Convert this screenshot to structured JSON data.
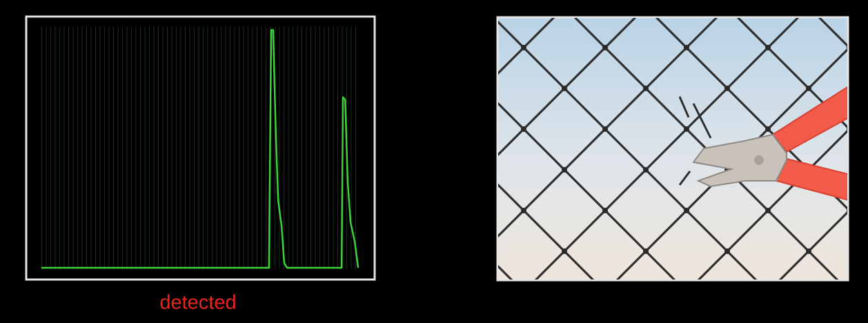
{
  "chart_data": {
    "type": "line",
    "annotation": "detected",
    "x": [
      0,
      71.7,
      72.4,
      73,
      73.9,
      74.6,
      75.7,
      76.5,
      77.4,
      94.6,
      95,
      95.7,
      96.5,
      97.4,
      98.7,
      99.8
    ],
    "series": [
      {
        "color": "#3fd13a",
        "values": [
          0,
          0,
          99,
          99,
          54,
          28,
          17,
          2,
          0,
          0,
          71,
          70,
          36,
          19,
          11,
          0
        ]
      }
    ],
    "xlim": [
      0,
      100
    ],
    "ylim": [
      0,
      100
    ]
  }
}
